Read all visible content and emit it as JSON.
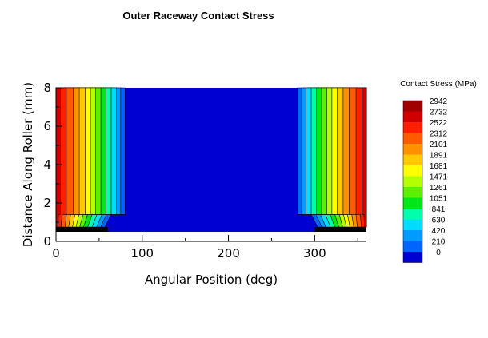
{
  "chart_data": {
    "type": "heatmap",
    "title": "Outer Raceway Contact Stress",
    "xlabel": "Angular Position (deg)",
    "ylabel": "Distance Along Roller (mm)",
    "xlim": [
      0,
      360
    ],
    "ylim": [
      0,
      8
    ],
    "x_ticks": [
      0,
      100,
      200,
      300
    ],
    "y_ticks": [
      0,
      2,
      4,
      6,
      8
    ],
    "x_tick_labels": [
      "0",
      "100",
      "200",
      "300"
    ],
    "y_tick_labels": [
      "0",
      "2",
      "4",
      "6",
      "8"
    ],
    "loaded_zone_deg": [
      [
        0,
        80
      ],
      [
        280,
        360
      ]
    ],
    "roller_length_mm": [
      0.5,
      8
    ],
    "legend": {
      "title": "Contact Stress (MPa)",
      "levels": [
        2942,
        2732,
        2522,
        2312,
        2101,
        1891,
        1681,
        1471,
        1261,
        1051,
        841,
        630,
        420,
        210,
        0
      ],
      "level_labels": [
        "2942",
        "2732",
        "2522",
        "2312",
        "2101",
        "1891",
        "1681",
        "1471",
        "1261",
        "1051",
        "841",
        "630",
        "420",
        "210",
        "0"
      ],
      "colors": [
        "#a00000",
        "#d00000",
        "#ff1e00",
        "#ff5a00",
        "#ff9100",
        "#ffc800",
        "#ffff00",
        "#b4ff00",
        "#5af000",
        "#00e619",
        "#00ffaa",
        "#00dcff",
        "#009bff",
        "#0064ff",
        "#0000d2"
      ]
    },
    "contours": [
      {
        "level": 210,
        "left_x": 80,
        "right_x": 280
      },
      {
        "level": 420,
        "left_x": 75,
        "right_x": 285
      },
      {
        "level": 630,
        "left_x": 70,
        "right_x": 290
      },
      {
        "level": 841,
        "left_x": 64,
        "right_x": 296
      },
      {
        "level": 1051,
        "left_x": 58,
        "right_x": 302
      },
      {
        "level": 1261,
        "left_x": 52,
        "right_x": 308
      },
      {
        "level": 1471,
        "left_x": 46,
        "right_x": 314
      },
      {
        "level": 1681,
        "left_x": 40,
        "right_x": 320
      },
      {
        "level": 1891,
        "left_x": 34,
        "right_x": 326
      },
      {
        "level": 2101,
        "left_x": 27,
        "right_x": 333
      },
      {
        "level": 2312,
        "left_x": 20,
        "right_x": 340
      },
      {
        "level": 2522,
        "left_x": 12,
        "right_x": 348
      },
      {
        "level": 2732,
        "left_x": 5,
        "right_x": 355
      }
    ],
    "grid": false,
    "legend_placement": "right"
  }
}
